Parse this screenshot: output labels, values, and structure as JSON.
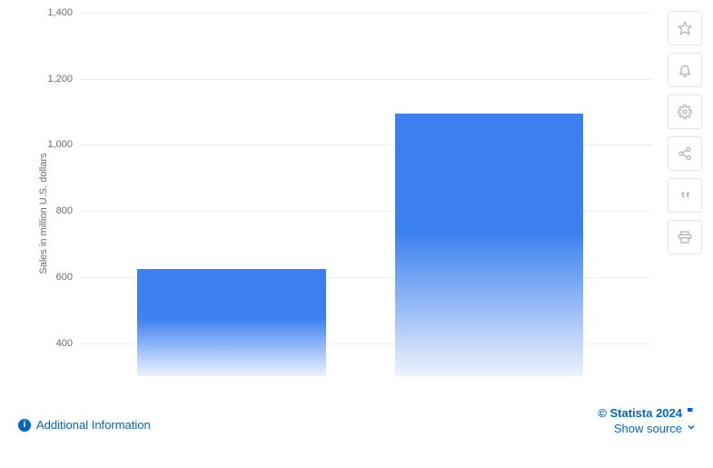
{
  "chart": {
    "type": "bar",
    "y_axis_label": "Sales in million U.S. dollars",
    "ylim": [
      300,
      1400
    ],
    "ytick_step": 200,
    "yticks": [
      400,
      600,
      800,
      1000,
      1200,
      1400
    ],
    "background_color": "#ffffff",
    "grid_color": "#eeeeee",
    "bar_gradient_top": "#3b7ff0",
    "bar_gradient_bottom": "#eef3fd",
    "tick_fontsize": 11,
    "tick_color": "#6b6b6b",
    "label_fontsize": 11,
    "bars": [
      {
        "value": 625,
        "left_pct": 10,
        "width_pct": 33
      },
      {
        "value": 1095,
        "left_pct": 55,
        "width_pct": 33
      }
    ]
  },
  "toolbar": {
    "items": [
      {
        "name": "star-icon"
      },
      {
        "name": "bell-icon"
      },
      {
        "name": "gear-icon"
      },
      {
        "name": "share-icon"
      },
      {
        "name": "quote-icon"
      },
      {
        "name": "print-icon"
      }
    ]
  },
  "footer": {
    "additional_info": "Additional Information",
    "copyright": "© Statista 2024",
    "show_source": "Show source",
    "link_color": "#0067b9"
  }
}
